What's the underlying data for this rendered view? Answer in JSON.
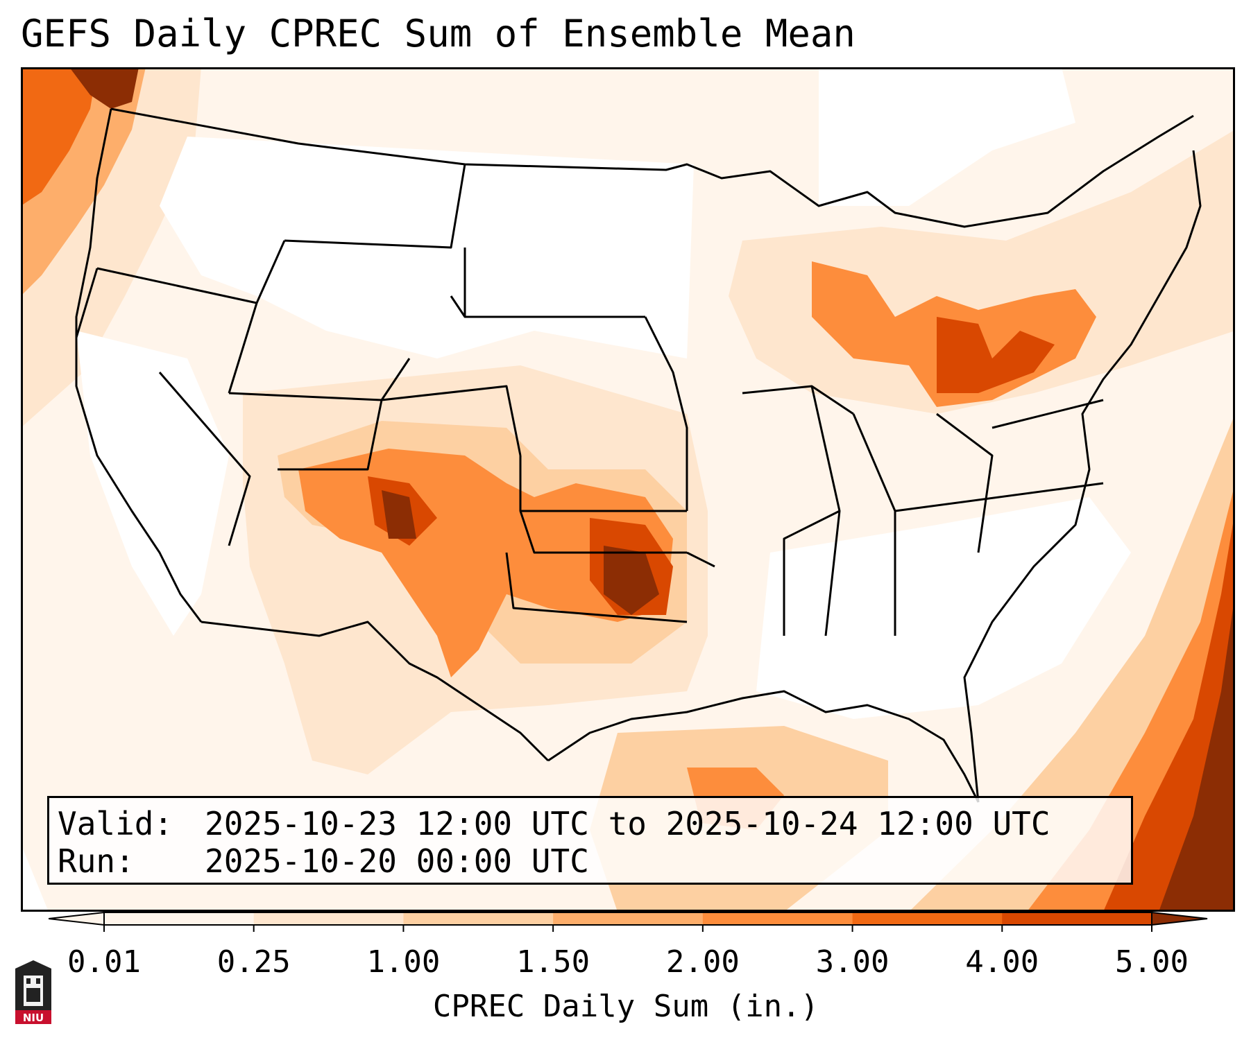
{
  "title": "GEFS Daily CPREC Sum of Ensemble Mean",
  "info": {
    "valid_key": "Valid:",
    "valid_value": "2025-10-23 12:00 UTC to 2025-10-24 12:00 UTC",
    "run_key": "Run:",
    "run_value": "2025-10-20 00:00 UTC"
  },
  "colorbar": {
    "label": "CPREC Daily Sum (in.)",
    "ticks": [
      "0.01",
      "0.25",
      "1.00",
      "1.50",
      "2.00",
      "3.00",
      "4.00",
      "5.00"
    ],
    "colors": [
      "#fff5eb",
      "#fee6ce",
      "#fdd0a2",
      "#fdae6b",
      "#fd8d3c",
      "#f16913",
      "#d94801",
      "#8c2d04"
    ]
  },
  "logo": {
    "text": "NIU"
  },
  "colors": {
    "land_background": "#ffffff",
    "border": "#000000"
  }
}
